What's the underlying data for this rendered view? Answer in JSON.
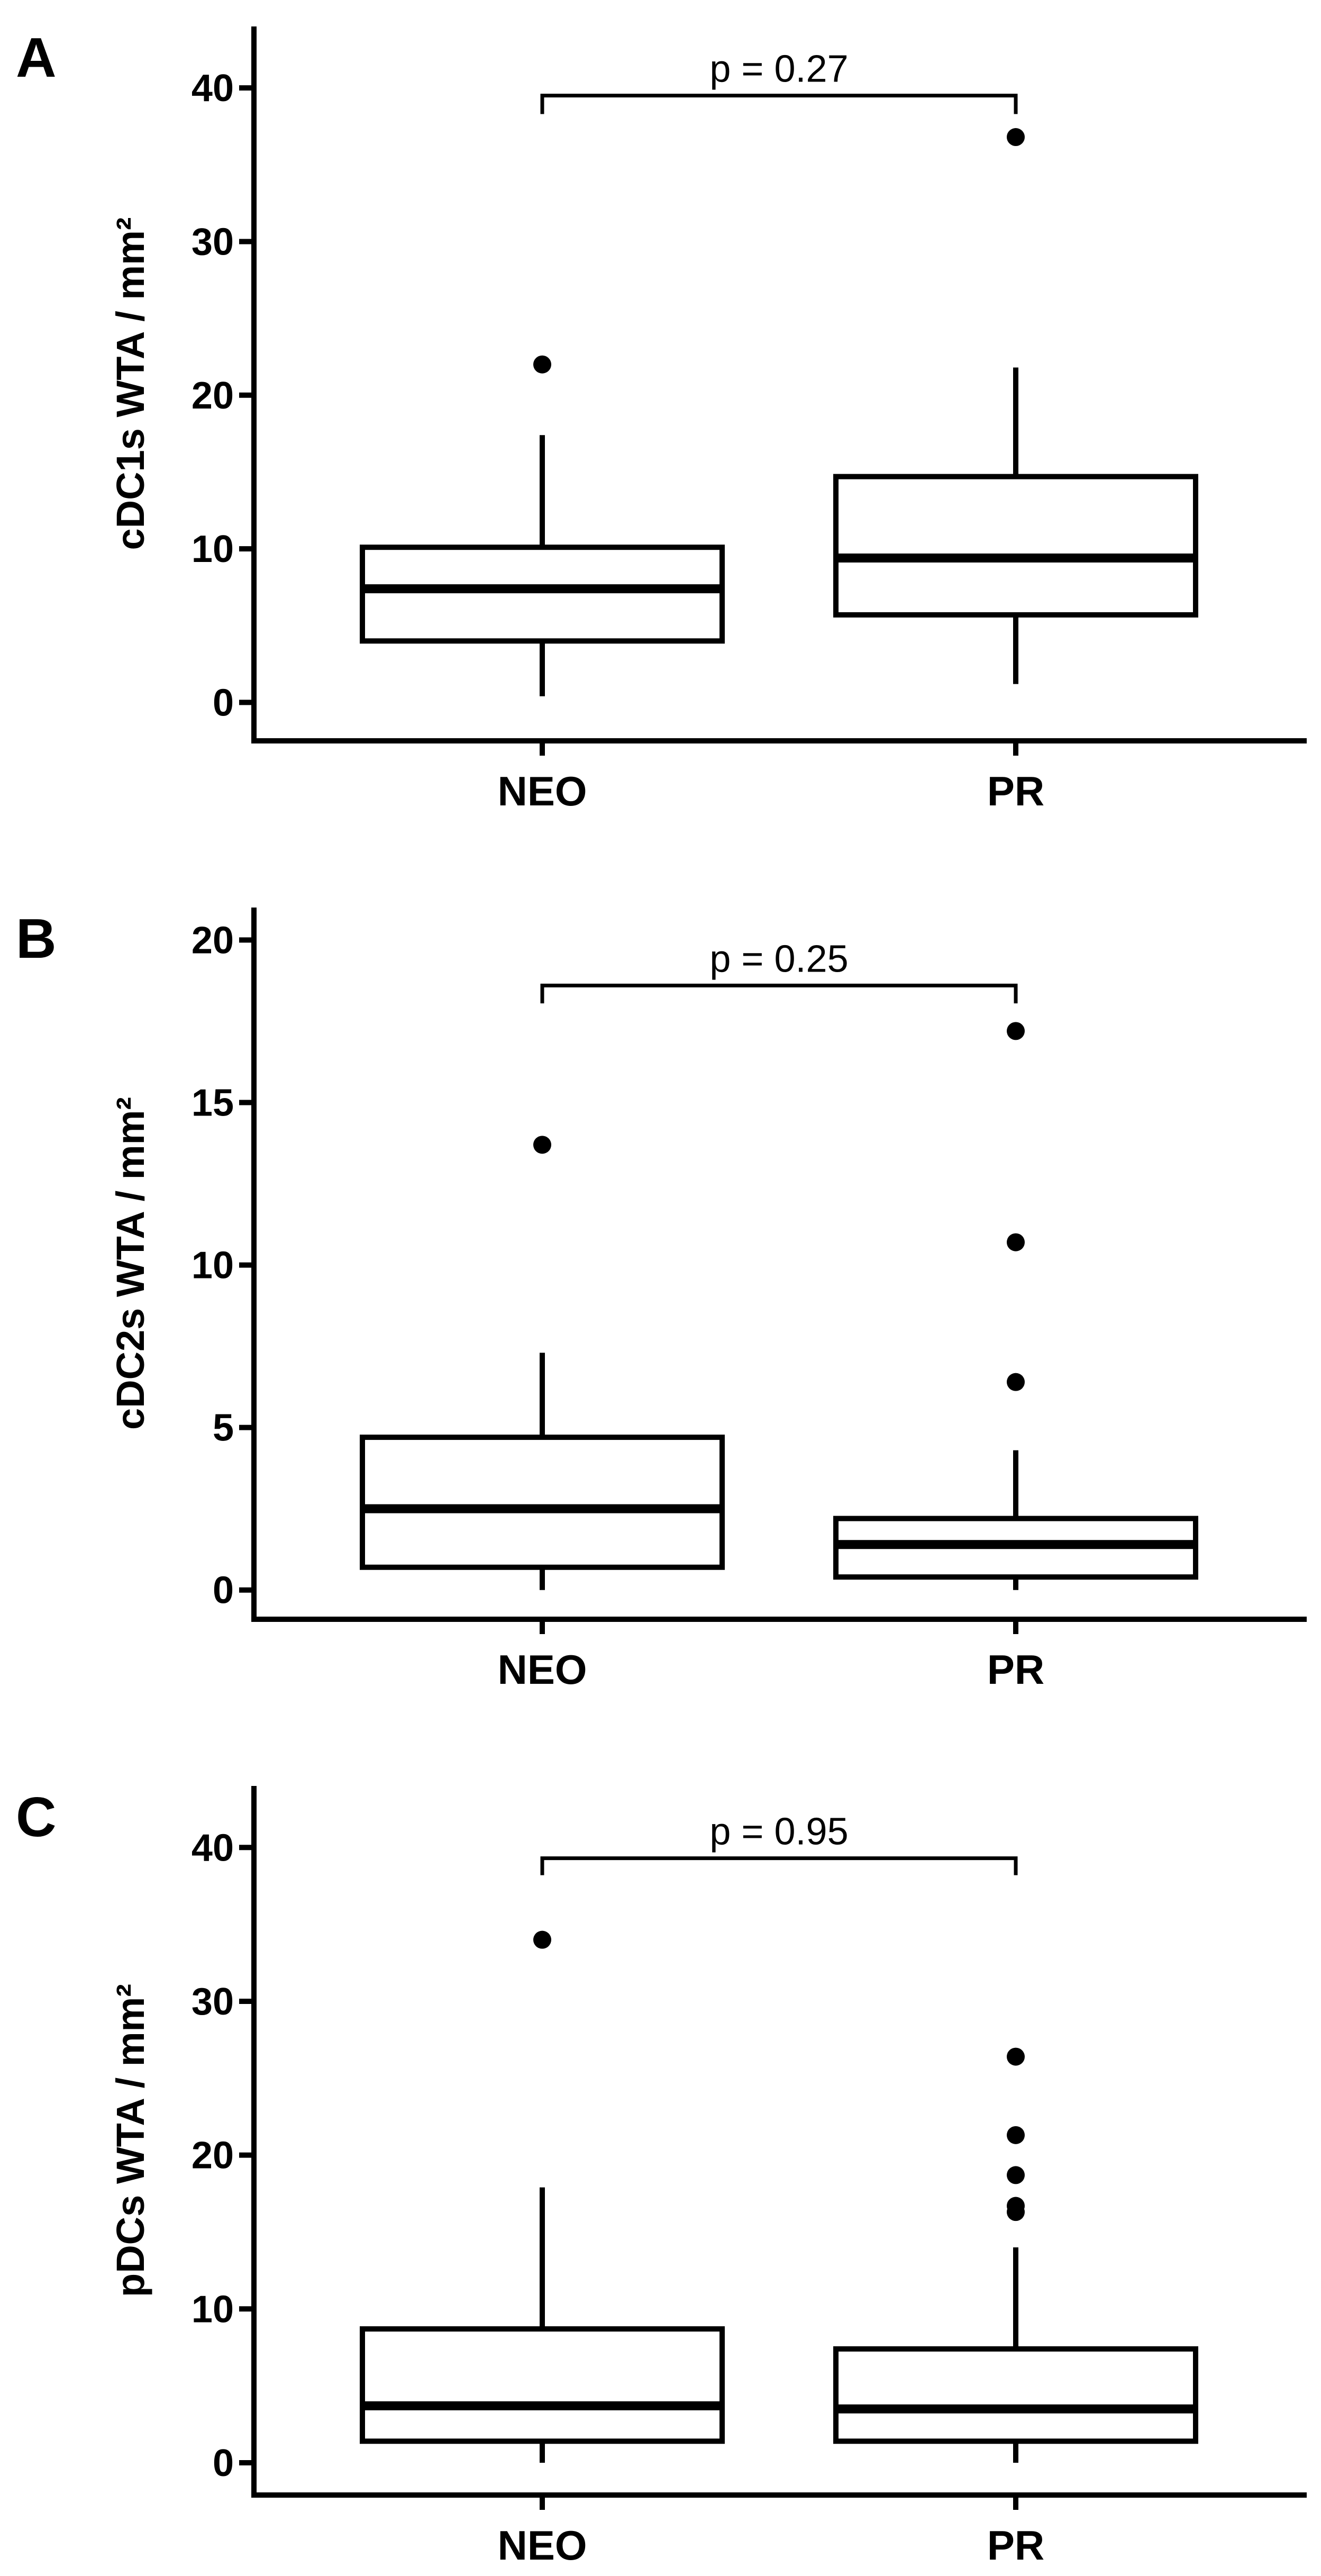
{
  "chart_data": [
    {
      "type": "boxplot",
      "panel_label": "A",
      "ylabel": "cDC1s WTA / mm²",
      "ylim": [
        -2.5,
        44
      ],
      "yticks": [
        0,
        10,
        20,
        30,
        40
      ],
      "ytick_labels": [
        "0",
        "10",
        "20",
        "30",
        "40"
      ],
      "categories": [
        "NEO",
        "PR"
      ],
      "boxes": [
        {
          "category": "NEO",
          "whisker_low": 0.4,
          "q1": 4.0,
          "median": 7.4,
          "q3": 10.1,
          "whisker_high": 17.4,
          "outliers": [
            22.0
          ]
        },
        {
          "category": "PR",
          "whisker_low": 1.2,
          "q1": 5.7,
          "median": 9.4,
          "q3": 14.7,
          "whisker_high": 21.8,
          "outliers": [
            36.8
          ]
        }
      ],
      "comparison": {
        "label": "p = 0.27",
        "bracket_y": 39.5,
        "bracket_drop": 1.2
      }
    },
    {
      "type": "boxplot",
      "panel_label": "B",
      "ylabel": "cDC2s WTA / mm²",
      "ylim": [
        -0.9,
        21
      ],
      "yticks": [
        0,
        5,
        10,
        15,
        20
      ],
      "ytick_labels": [
        "0",
        "5",
        "10",
        "15",
        "20"
      ],
      "categories": [
        "NEO",
        "PR"
      ],
      "boxes": [
        {
          "category": "NEO",
          "whisker_low": 0.0,
          "q1": 0.7,
          "median": 2.5,
          "q3": 4.7,
          "whisker_high": 7.3,
          "outliers": [
            13.7
          ]
        },
        {
          "category": "PR",
          "whisker_low": 0.0,
          "q1": 0.4,
          "median": 1.4,
          "q3": 2.2,
          "whisker_high": 4.3,
          "outliers": [
            6.4,
            10.7,
            17.2
          ]
        }
      ],
      "comparison": {
        "label": "p = 0.25",
        "bracket_y": 18.6,
        "bracket_drop": 0.55
      }
    },
    {
      "type": "boxplot",
      "panel_label": "C",
      "ylabel": "pDCs WTA / mm²",
      "ylim": [
        -2.1,
        44
      ],
      "yticks": [
        0,
        10,
        20,
        30,
        40
      ],
      "ytick_labels": [
        "0",
        "10",
        "20",
        "30",
        "40"
      ],
      "categories": [
        "NEO",
        "PR"
      ],
      "boxes": [
        {
          "category": "NEO",
          "whisker_low": 0.0,
          "q1": 1.4,
          "median": 3.7,
          "q3": 8.7,
          "whisker_high": 17.9,
          "outliers": [
            34.0
          ]
        },
        {
          "category": "PR",
          "whisker_low": 0.0,
          "q1": 1.4,
          "median": 3.5,
          "q3": 7.4,
          "whisker_high": 14.0,
          "outliers": [
            16.3,
            16.7,
            18.7,
            21.3,
            26.4
          ]
        }
      ],
      "comparison": {
        "label": "p = 0.95",
        "bracket_y": 39.3,
        "bracket_drop": 1.1
      }
    }
  ]
}
